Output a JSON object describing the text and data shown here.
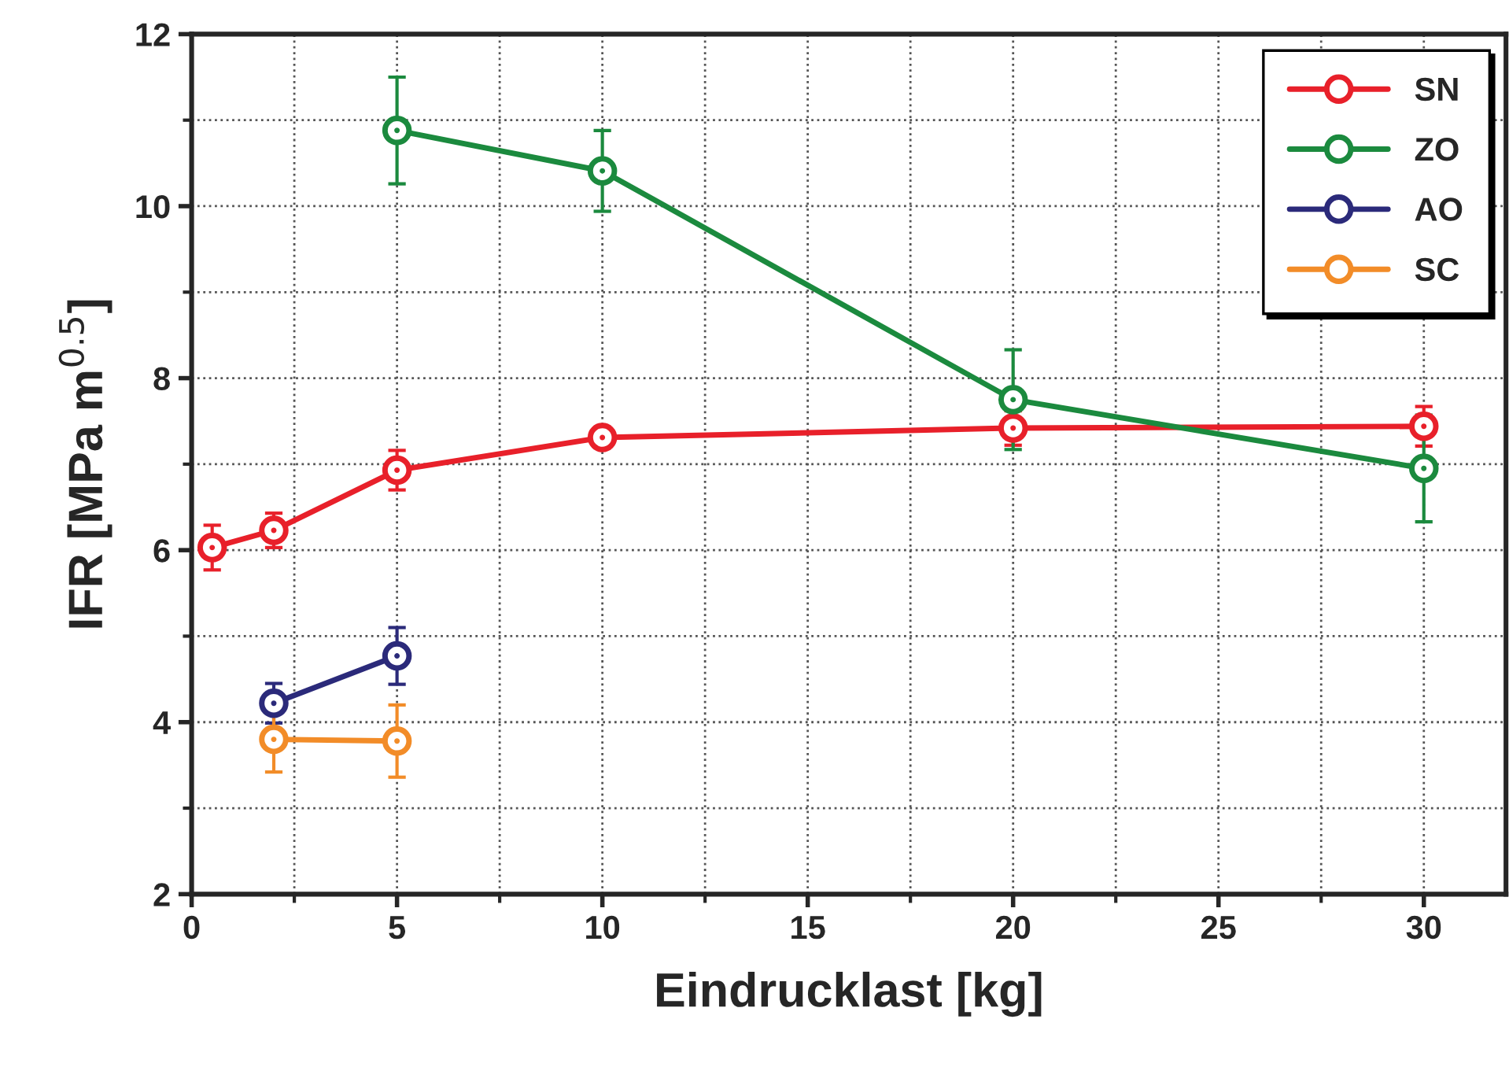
{
  "chart_data": {
    "type": "line",
    "xlabel": "Eindrucklast [kg]",
    "ylabel": "IFR [MPa m$^{0.5}$]",
    "xlim": [
      0,
      32
    ],
    "ylim": [
      2,
      12
    ],
    "xticks": [
      0,
      5,
      10,
      15,
      20,
      25,
      30
    ],
    "yticks": [
      2,
      4,
      6,
      8,
      10,
      12
    ],
    "grid": true,
    "legend": "top right",
    "marker": "circle",
    "series": [
      {
        "name": "SN",
        "color": "#e8202a",
        "x": [
          0.5,
          2,
          5,
          10,
          20,
          30
        ],
        "values": [
          6.03,
          6.23,
          6.93,
          7.31,
          7.42,
          7.44
        ],
        "errors": [
          0.26,
          0.2,
          0.23,
          0.12,
          0.2,
          0.23
        ]
      },
      {
        "name": "ZO",
        "color": "#1b8a3e",
        "x": [
          5,
          10,
          20,
          30
        ],
        "values": [
          10.88,
          10.41,
          7.75,
          6.95
        ],
        "errors": [
          0.62,
          0.47,
          0.58,
          0.62
        ]
      },
      {
        "name": "AO",
        "color": "#2b2a7a",
        "x": [
          2,
          5
        ],
        "values": [
          4.22,
          4.77
        ],
        "errors": [
          0.23,
          0.33
        ]
      },
      {
        "name": "SC",
        "color": "#f28c28",
        "x": [
          2,
          5
        ],
        "values": [
          3.8,
          3.78
        ],
        "errors": [
          0.38,
          0.42
        ]
      }
    ]
  }
}
